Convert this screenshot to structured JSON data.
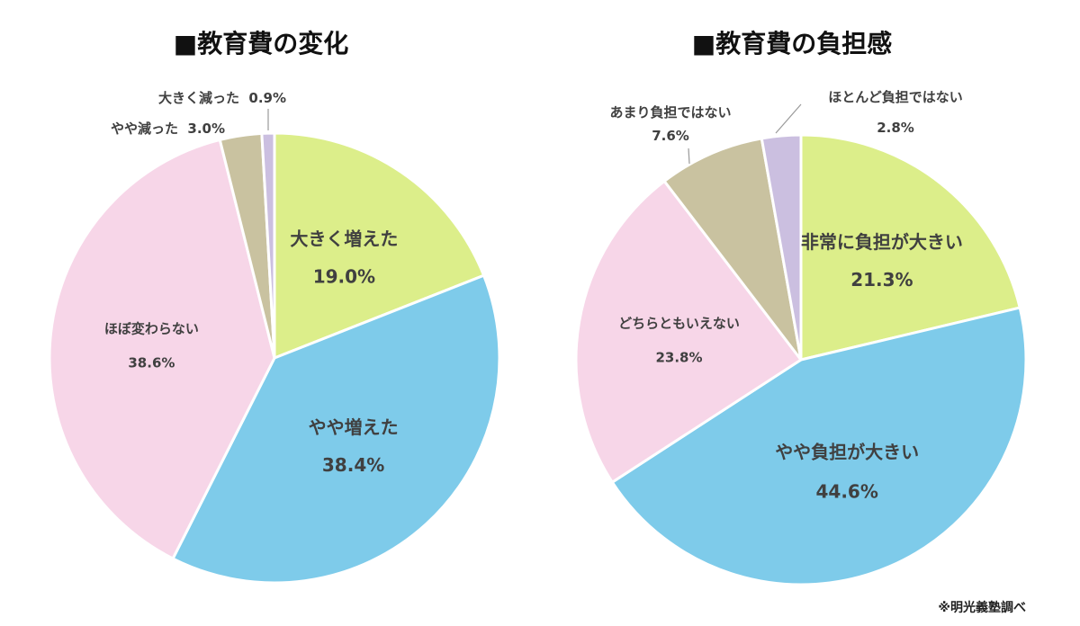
{
  "source_note": "※明光義塾調べ",
  "chart_data": [
    {
      "type": "pie",
      "title": "■教育費の変化",
      "start": "top, clockwise",
      "slices": [
        {
          "label": "大きく増えた",
          "value": 19.0,
          "value_text": "19.0%",
          "color": "#dcee8a",
          "style": "inside-big"
        },
        {
          "label": "やや増えた",
          "value": 38.4,
          "value_text": "38.4%",
          "color": "#7ecbea",
          "style": "inside-big"
        },
        {
          "label": "ほぼ変わらない",
          "value": 38.6,
          "value_text": "38.6%",
          "color": "#f7d6e8",
          "style": "inside-small"
        },
        {
          "label": "やや減った",
          "value": 3.0,
          "value_text": "3.0%",
          "color": "#c9c2a0",
          "style": "outside-inline"
        },
        {
          "label": "大きく減った",
          "value": 0.9,
          "value_text": "0.9%",
          "color": "#cbbfe0",
          "style": "outside-inline-leader"
        }
      ]
    },
    {
      "type": "pie",
      "title": "■教育費の負担感",
      "start": "top, clockwise",
      "slices": [
        {
          "label": "非常に負担が大きい",
          "value": 21.3,
          "value_text": "21.3%",
          "color": "#dcee8a",
          "style": "inside-big"
        },
        {
          "label": "やや負担が大きい",
          "value": 44.6,
          "value_text": "44.6%",
          "color": "#7ecbea",
          "style": "inside-big"
        },
        {
          "label": "どちらともいえない",
          "value": 23.8,
          "value_text": "23.8%",
          "color": "#f7d6e8",
          "style": "inside-small"
        },
        {
          "label": "あまり負担ではない",
          "value": 7.6,
          "value_text": "7.6%",
          "color": "#c9c2a0",
          "style": "outside-stacked-leader"
        },
        {
          "label": "ほとんど負担ではない",
          "value": 2.8,
          "value_text": "2.8%",
          "color": "#cbbfe0",
          "style": "outside-stacked-leader"
        }
      ]
    }
  ]
}
